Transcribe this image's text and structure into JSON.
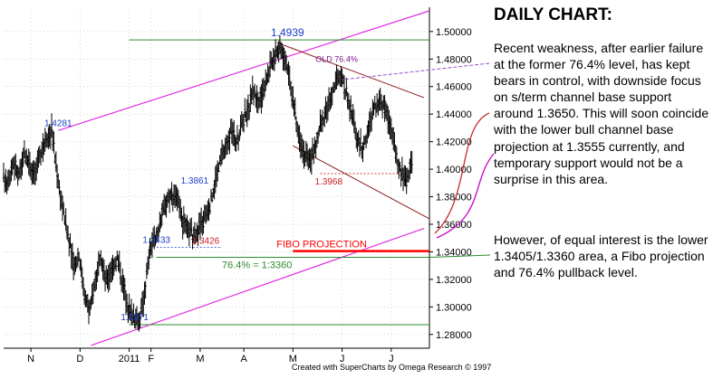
{
  "chart_data": {
    "type": "ohlc",
    "title": "",
    "xlabel": "",
    "ylabel": "",
    "ylim": [
      1.27,
      1.515
    ],
    "y_ticks": [
      1.28,
      1.3,
      1.32,
      1.34,
      1.36,
      1.38,
      1.4,
      1.42,
      1.44,
      1.46,
      1.48,
      1.5
    ],
    "y_tick_labels": [
      "1.28000",
      "1.30000",
      "1.32000",
      "1.34000",
      "1.36000",
      "1.38000",
      "1.40000",
      "1.42000",
      "1.44000",
      "1.46000",
      "1.48000",
      "1.50000"
    ],
    "x_months": [
      {
        "label": "N",
        "week": 5
      },
      {
        "label": "D",
        "week": 14
      },
      {
        "label": "2011",
        "week": 23
      },
      {
        "label": "F",
        "week": 27
      },
      {
        "label": "M",
        "week": 36
      },
      {
        "label": "A",
        "week": 44
      },
      {
        "label": "M",
        "week": 53
      },
      {
        "label": "J",
        "week": 62
      },
      {
        "label": "J",
        "week": 71
      }
    ],
    "x_weeks_total": 78,
    "grid": true,
    "closes": [
      1.392,
      1.405,
      1.395,
      1.41,
      1.404,
      1.398,
      1.412,
      1.424,
      1.428,
      1.396,
      1.372,
      1.352,
      1.33,
      1.338,
      1.31,
      1.296,
      1.322,
      1.334,
      1.318,
      1.328,
      1.336,
      1.318,
      1.3,
      1.294,
      1.288,
      1.31,
      1.342,
      1.348,
      1.364,
      1.376,
      1.383,
      1.378,
      1.362,
      1.356,
      1.35,
      1.358,
      1.364,
      1.374,
      1.392,
      1.408,
      1.418,
      1.428,
      1.42,
      1.436,
      1.444,
      1.458,
      1.448,
      1.462,
      1.474,
      1.486,
      1.489,
      1.478,
      1.455,
      1.43,
      1.415,
      1.405,
      1.412,
      1.428,
      1.44,
      1.45,
      1.462,
      1.468,
      1.455,
      1.438,
      1.422,
      1.415,
      1.428,
      1.444,
      1.45,
      1.446,
      1.432,
      1.412,
      1.398,
      1.392,
      1.404
    ],
    "levels": [
      {
        "name": "peak",
        "label": "1.4939",
        "value": 1.4939,
        "color": "#1f6e1f"
      },
      {
        "name": "retracement",
        "label": "76.4% = 1:3360",
        "value": 1.336,
        "color": "#1f6e1f"
      },
      {
        "name": "low",
        "label": "1.2871",
        "value": 1.2871,
        "color": "#1f6e1f"
      },
      {
        "name": "fibo",
        "label": "FIBO PROJECTION",
        "value": 1.3405,
        "color": "#ff0000"
      },
      {
        "name": "support",
        "label": "1.3968",
        "value": 1.3968,
        "color": "#c81e1e"
      }
    ],
    "point_labels": [
      {
        "label": "1.4281",
        "week": 10,
        "value": 1.4281
      },
      {
        "label": "1.3861",
        "week": 35,
        "value": 1.3861
      },
      {
        "label": "1.3433",
        "week": 28,
        "value": 1.3433
      },
      {
        "label": "1.3426",
        "week": 37,
        "value": 1.3426
      },
      {
        "label": "1.2871",
        "week": 24,
        "value": 1.2871
      },
      {
        "label": "OLD 76.4%",
        "week": 61,
        "value": 1.4745
      }
    ],
    "channel_label_color": "#c800c8",
    "credit": "Created with SuperCharts by Omega Research © 1997"
  },
  "commentary": {
    "title": "DAILY CHART:",
    "paragraph1": "Recent weakness, after earlier failure at the former 76.4% level, has kept bears in control, with downside focus on s/term channel base support around 1.3650. This will soon coincide with the lower bull channel base projection at 1.3555 currently, and temporary support would not be a surprise in this area.",
    "paragraph2": "However, of equal interest is the lower 1.3405/1.3360 area, a Fibo projection and 76.4% pullback level."
  },
  "colors": {
    "bars": "#000000",
    "channel": "#e02ee0",
    "down_channel": "#8b1a1a",
    "grid": "#bdbdbd",
    "axis_text": "#000000",
    "level_green": "#2e8b2e",
    "fibo_red": "#ff0000",
    "label_blue": "#1e3ec8"
  }
}
